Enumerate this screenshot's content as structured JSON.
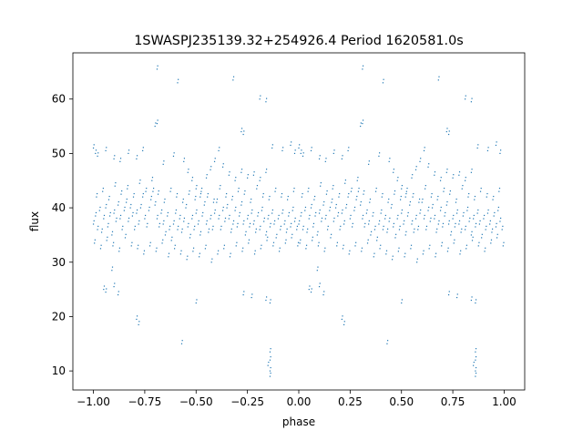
{
  "chart_data": {
    "type": "scatter",
    "title": "1SWASPJ235139.32+254926.4 Period 1620581.0s",
    "xlabel": "phase",
    "ylabel": "flux",
    "xlim": [
      -1.1,
      1.1
    ],
    "ylim": [
      6.5,
      68.5
    ],
    "xticks": [
      -1.0,
      -0.75,
      -0.5,
      -0.25,
      0.0,
      0.25,
      0.5,
      0.75,
      1.0
    ],
    "xtick_labels": [
      "−1.00",
      "−0.75",
      "−0.50",
      "−0.25",
      "0.00",
      "0.25",
      "0.50",
      "0.75",
      "1.00"
    ],
    "yticks": [
      10,
      20,
      30,
      40,
      50,
      60
    ],
    "ytick_labels": [
      "10",
      "20",
      "30",
      "40",
      "50",
      "60"
    ],
    "grid": false,
    "point_color": "#1f77b4",
    "series": [
      {
        "points_phase_0_to_1": [
          [
            0.0,
            37.0
          ],
          [
            0.01,
            38.5
          ],
          [
            0.02,
            36.0
          ],
          [
            0.03,
            39.5
          ],
          [
            0.04,
            35.5
          ],
          [
            0.05,
            38.0
          ],
          [
            0.06,
            40.0
          ],
          [
            0.07,
            36.5
          ],
          [
            0.08,
            38.5
          ],
          [
            0.09,
            35.0
          ],
          [
            0.1,
            39.0
          ],
          [
            0.11,
            37.5
          ],
          [
            0.12,
            40.5
          ],
          [
            0.13,
            38.0
          ],
          [
            0.14,
            36.0
          ],
          [
            0.15,
            39.5
          ],
          [
            0.16,
            41.0
          ],
          [
            0.17,
            37.5
          ],
          [
            0.18,
            40.0
          ],
          [
            0.19,
            38.5
          ],
          [
            0.2,
            36.0
          ],
          [
            0.21,
            39.0
          ],
          [
            0.22,
            37.0
          ],
          [
            0.23,
            40.0
          ],
          [
            0.24,
            42.0
          ],
          [
            0.25,
            38.0
          ],
          [
            0.26,
            36.5
          ],
          [
            0.27,
            39.5
          ],
          [
            0.28,
            41.5
          ],
          [
            0.29,
            43.0
          ],
          [
            0.3,
            40.5
          ],
          [
            0.31,
            38.0
          ],
          [
            0.32,
            36.5
          ],
          [
            0.33,
            39.0
          ],
          [
            0.34,
            37.0
          ],
          [
            0.35,
            35.0
          ],
          [
            0.36,
            38.5
          ],
          [
            0.37,
            36.0
          ],
          [
            0.38,
            34.0
          ],
          [
            0.39,
            37.0
          ],
          [
            0.4,
            39.0
          ],
          [
            0.41,
            36.0
          ],
          [
            0.42,
            38.0
          ],
          [
            0.43,
            35.5
          ],
          [
            0.44,
            37.5
          ],
          [
            0.45,
            40.0
          ],
          [
            0.46,
            36.5
          ],
          [
            0.47,
            34.5
          ],
          [
            0.48,
            38.0
          ],
          [
            0.49,
            36.0
          ],
          [
            0.5,
            39.0
          ],
          [
            0.51,
            37.0
          ],
          [
            0.52,
            35.0
          ],
          [
            0.53,
            38.5
          ],
          [
            0.54,
            40.5
          ],
          [
            0.55,
            37.0
          ],
          [
            0.56,
            35.5
          ],
          [
            0.57,
            38.0
          ],
          [
            0.58,
            36.0
          ],
          [
            0.59,
            39.0
          ],
          [
            0.6,
            41.0
          ],
          [
            0.61,
            38.0
          ],
          [
            0.62,
            36.0
          ],
          [
            0.63,
            39.5
          ],
          [
            0.64,
            37.5
          ],
          [
            0.65,
            40.0
          ],
          [
            0.66,
            38.0
          ],
          [
            0.67,
            35.5
          ],
          [
            0.68,
            37.0
          ],
          [
            0.69,
            39.5
          ],
          [
            0.7,
            36.5
          ],
          [
            0.71,
            38.5
          ],
          [
            0.72,
            40.5
          ],
          [
            0.73,
            37.0
          ],
          [
            0.74,
            35.0
          ],
          [
            0.75,
            38.0
          ],
          [
            0.76,
            36.5
          ],
          [
            0.77,
            39.0
          ],
          [
            0.78,
            37.0
          ],
          [
            0.79,
            35.5
          ],
          [
            0.8,
            38.5
          ],
          [
            0.81,
            36.0
          ],
          [
            0.82,
            39.5
          ],
          [
            0.83,
            37.5
          ],
          [
            0.84,
            35.0
          ],
          [
            0.85,
            38.0
          ],
          [
            0.86,
            36.5
          ],
          [
            0.87,
            39.0
          ],
          [
            0.88,
            37.0
          ],
          [
            0.89,
            34.5
          ],
          [
            0.9,
            38.0
          ],
          [
            0.91,
            36.0
          ],
          [
            0.92,
            39.0
          ],
          [
            0.93,
            37.0
          ],
          [
            0.94,
            35.5
          ],
          [
            0.95,
            38.5
          ],
          [
            0.96,
            36.5
          ],
          [
            0.97,
            39.5
          ],
          [
            0.98,
            37.5
          ],
          [
            0.99,
            36.0
          ],
          [
            0.005,
            33.5
          ],
          [
            0.035,
            32.5
          ],
          [
            0.065,
            34.0
          ],
          [
            0.095,
            33.0
          ],
          [
            0.125,
            32.0
          ],
          [
            0.155,
            34.5
          ],
          [
            0.185,
            33.0
          ],
          [
            0.215,
            32.5
          ],
          [
            0.245,
            31.5
          ],
          [
            0.275,
            33.0
          ],
          [
            0.305,
            32.0
          ],
          [
            0.335,
            33.5
          ],
          [
            0.365,
            31.0
          ],
          [
            0.395,
            32.5
          ],
          [
            0.425,
            31.5
          ],
          [
            0.455,
            30.5
          ],
          [
            0.485,
            32.0
          ],
          [
            0.515,
            31.0
          ],
          [
            0.545,
            32.5
          ],
          [
            0.575,
            30.0
          ],
          [
            0.605,
            31.5
          ],
          [
            0.635,
            32.5
          ],
          [
            0.665,
            31.0
          ],
          [
            0.695,
            33.0
          ],
          [
            0.725,
            32.0
          ],
          [
            0.755,
            33.5
          ],
          [
            0.785,
            31.5
          ],
          [
            0.815,
            32.5
          ],
          [
            0.845,
            34.0
          ],
          [
            0.875,
            33.0
          ],
          [
            0.905,
            32.0
          ],
          [
            0.935,
            33.5
          ],
          [
            0.965,
            34.5
          ],
          [
            0.995,
            33.0
          ],
          [
            0.015,
            42.0
          ],
          [
            0.045,
            43.0
          ],
          [
            0.075,
            41.5
          ],
          [
            0.105,
            44.0
          ],
          [
            0.135,
            42.5
          ],
          [
            0.165,
            43.5
          ],
          [
            0.195,
            42.0
          ],
          [
            0.225,
            44.5
          ],
          [
            0.255,
            43.0
          ],
          [
            0.285,
            45.0
          ],
          [
            0.315,
            42.5
          ],
          [
            0.345,
            41.0
          ],
          [
            0.375,
            43.0
          ],
          [
            0.405,
            42.0
          ],
          [
            0.435,
            41.0
          ],
          [
            0.465,
            42.5
          ],
          [
            0.495,
            41.5
          ],
          [
            0.525,
            43.0
          ],
          [
            0.555,
            42.0
          ],
          [
            0.585,
            41.0
          ],
          [
            0.615,
            43.5
          ],
          [
            0.645,
            42.0
          ],
          [
            0.675,
            41.5
          ],
          [
            0.705,
            43.0
          ],
          [
            0.735,
            42.5
          ],
          [
            0.765,
            41.0
          ],
          [
            0.795,
            43.5
          ],
          [
            0.825,
            42.0
          ],
          [
            0.855,
            41.5
          ],
          [
            0.885,
            43.0
          ],
          [
            0.915,
            42.0
          ],
          [
            0.945,
            41.5
          ],
          [
            0.975,
            43.0
          ],
          [
            0.02,
            49.5
          ],
          [
            0.06,
            50.5
          ],
          [
            0.1,
            49.0
          ],
          [
            0.13,
            48.5
          ],
          [
            0.17,
            50.0
          ],
          [
            0.21,
            49.0
          ],
          [
            0.24,
            50.5
          ],
          [
            0.34,
            48.0
          ],
          [
            0.39,
            49.5
          ],
          [
            0.44,
            48.5
          ],
          [
            0.46,
            46.5
          ],
          [
            0.48,
            45.0
          ],
          [
            0.5,
            43.5
          ],
          [
            0.52,
            42.0
          ],
          [
            0.55,
            45.5
          ],
          [
            0.57,
            47.0
          ],
          [
            0.59,
            48.5
          ],
          [
            0.61,
            50.5
          ],
          [
            0.63,
            47.5
          ],
          [
            0.66,
            46.0
          ],
          [
            0.69,
            45.0
          ],
          [
            0.72,
            46.5
          ],
          [
            0.75,
            45.5
          ],
          [
            0.78,
            46.0
          ],
          [
            0.81,
            45.0
          ],
          [
            0.84,
            46.5
          ],
          [
            0.87,
            51.0
          ],
          [
            0.92,
            50.5
          ],
          [
            0.96,
            51.5
          ],
          [
            0.98,
            50.0
          ],
          [
            0.3,
            55.0
          ],
          [
            0.31,
            55.5
          ],
          [
            0.72,
            54.0
          ],
          [
            0.73,
            53.5
          ],
          [
            0.0,
            51.0
          ],
          [
            0.01,
            50.0
          ],
          [
            0.05,
            25.0
          ],
          [
            0.06,
            24.5
          ],
          [
            0.1,
            25.5
          ],
          [
            0.12,
            24.0
          ],
          [
            0.21,
            19.5
          ],
          [
            0.22,
            18.5
          ],
          [
            0.73,
            24.0
          ],
          [
            0.77,
            23.5
          ],
          [
            0.84,
            23.0
          ],
          [
            0.86,
            22.5
          ],
          [
            0.86,
            13.5
          ],
          [
            0.86,
            12.0
          ],
          [
            0.86,
            10.0
          ],
          [
            0.86,
            9.0
          ],
          [
            0.85,
            11.0
          ],
          [
            0.31,
            65.5
          ],
          [
            0.41,
            63.0
          ],
          [
            0.68,
            63.5
          ],
          [
            0.84,
            59.5
          ],
          [
            0.81,
            60.0
          ],
          [
            0.43,
            15.0
          ],
          [
            0.09,
            28.5
          ],
          [
            0.5,
            22.5
          ]
        ]
      }
    ]
  }
}
